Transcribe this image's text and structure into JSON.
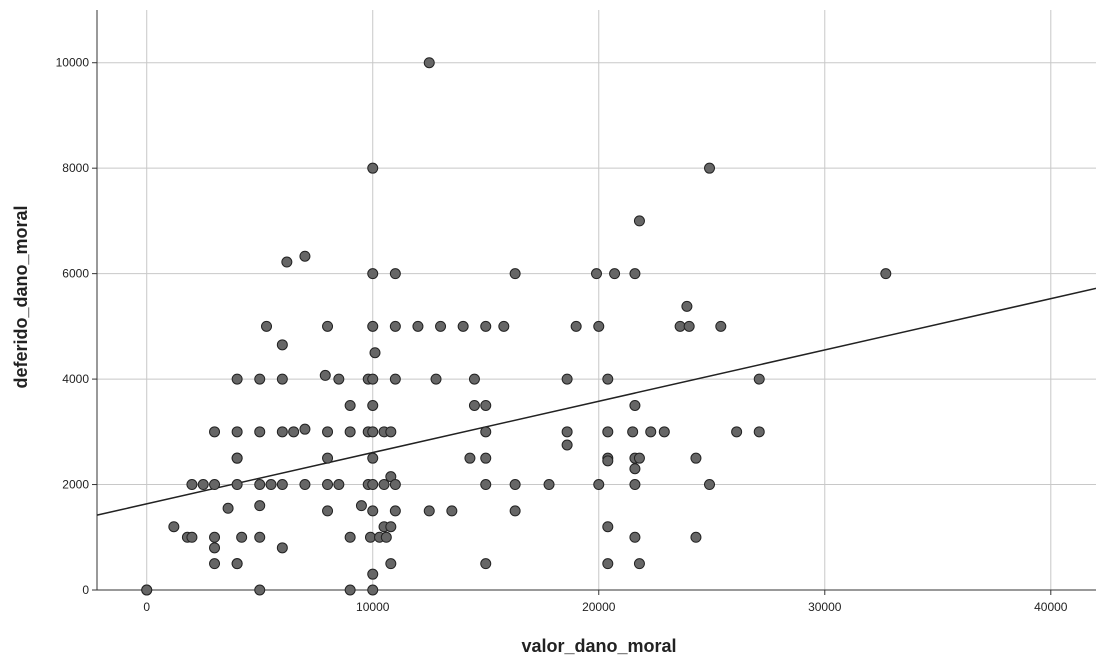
{
  "chart_data": {
    "type": "scatter",
    "xlabel": "valor_dano_moral",
    "ylabel": "deferido_dano_moral",
    "xlim": [
      -2200,
      42000
    ],
    "ylim": [
      0,
      11000
    ],
    "xticks": [
      0,
      10000,
      20000,
      30000,
      40000
    ],
    "yticks": [
      0,
      2000,
      4000,
      6000,
      8000,
      10000
    ],
    "grid": true,
    "point_color": "#666666",
    "point_edge": "#222222",
    "line_color": "#222222",
    "fit_line": {
      "x": [
        -2200,
        42000
      ],
      "y": [
        1420,
        5720
      ]
    },
    "points": [
      [
        0,
        0
      ],
      [
        0,
        0
      ],
      [
        1200,
        1200
      ],
      [
        1800,
        1000
      ],
      [
        2000,
        1000
      ],
      [
        2000,
        2000
      ],
      [
        2500,
        2000
      ],
      [
        3000,
        3000
      ],
      [
        3000,
        2000
      ],
      [
        3000,
        1000
      ],
      [
        3000,
        800
      ],
      [
        3000,
        500
      ],
      [
        3600,
        1550
      ],
      [
        4000,
        4000
      ],
      [
        4000,
        3000
      ],
      [
        4000,
        2500
      ],
      [
        4000,
        2500
      ],
      [
        4000,
        2000
      ],
      [
        4000,
        500
      ],
      [
        4000,
        500
      ],
      [
        4200,
        1000
      ],
      [
        5000,
        4000
      ],
      [
        5000,
        3000
      ],
      [
        5000,
        2000
      ],
      [
        5000,
        1600
      ],
      [
        5000,
        1000
      ],
      [
        5000,
        0
      ],
      [
        5300,
        5000
      ],
      [
        5500,
        2000
      ],
      [
        6000,
        4650
      ],
      [
        6000,
        4000
      ],
      [
        6000,
        3000
      ],
      [
        6000,
        2000
      ],
      [
        6000,
        800
      ],
      [
        6200,
        6220
      ],
      [
        6500,
        3000
      ],
      [
        7000,
        6330
      ],
      [
        7000,
        3050
      ],
      [
        7000,
        2000
      ],
      [
        7900,
        4070
      ],
      [
        8000,
        5000
      ],
      [
        8000,
        3000
      ],
      [
        8000,
        2500
      ],
      [
        8000,
        2000
      ],
      [
        8000,
        1500
      ],
      [
        8500,
        4000
      ],
      [
        8500,
        2000
      ],
      [
        9000,
        3500
      ],
      [
        9000,
        3000
      ],
      [
        9000,
        1000
      ],
      [
        9000,
        0
      ],
      [
        9500,
        1600
      ],
      [
        9800,
        4000
      ],
      [
        9800,
        3000
      ],
      [
        9800,
        2000
      ],
      [
        9900,
        1000
      ],
      [
        10000,
        8000
      ],
      [
        10000,
        6000
      ],
      [
        10000,
        5000
      ],
      [
        10000,
        4000
      ],
      [
        10000,
        3500
      ],
      [
        10000,
        3000
      ],
      [
        10000,
        2500
      ],
      [
        10000,
        2000
      ],
      [
        10000,
        1500
      ],
      [
        10000,
        300
      ],
      [
        10000,
        0
      ],
      [
        10100,
        4500
      ],
      [
        10300,
        1000
      ],
      [
        10500,
        3000
      ],
      [
        10500,
        2000
      ],
      [
        10500,
        1200
      ],
      [
        10600,
        1000
      ],
      [
        10800,
        3000
      ],
      [
        10800,
        2150
      ],
      [
        10800,
        1200
      ],
      [
        10800,
        500
      ],
      [
        11000,
        6000
      ],
      [
        11000,
        5000
      ],
      [
        11000,
        4000
      ],
      [
        11000,
        2000
      ],
      [
        11000,
        1500
      ],
      [
        12000,
        5000
      ],
      [
        12500,
        10000
      ],
      [
        12500,
        1500
      ],
      [
        12800,
        4000
      ],
      [
        13000,
        5000
      ],
      [
        13500,
        1500
      ],
      [
        14000,
        5000
      ],
      [
        14300,
        2500
      ],
      [
        14500,
        4000
      ],
      [
        14500,
        3500
      ],
      [
        15000,
        5000
      ],
      [
        15000,
        3500
      ],
      [
        15000,
        3000
      ],
      [
        15000,
        2500
      ],
      [
        15000,
        2000
      ],
      [
        15000,
        500
      ],
      [
        15800,
        5000
      ],
      [
        16300,
        6000
      ],
      [
        16300,
        2000
      ],
      [
        16300,
        1500
      ],
      [
        17800,
        2000
      ],
      [
        18600,
        4000
      ],
      [
        18600,
        3000
      ],
      [
        18600,
        2750
      ],
      [
        19000,
        5000
      ],
      [
        19900,
        6000
      ],
      [
        20000,
        5000
      ],
      [
        20000,
        2000
      ],
      [
        20400,
        4000
      ],
      [
        20400,
        3000
      ],
      [
        20400,
        2500
      ],
      [
        20400,
        2450
      ],
      [
        20400,
        1200
      ],
      [
        20400,
        500
      ],
      [
        20700,
        6000
      ],
      [
        21500,
        3000
      ],
      [
        21600,
        6000
      ],
      [
        21600,
        3500
      ],
      [
        21600,
        2500
      ],
      [
        21600,
        2300
      ],
      [
        21600,
        2000
      ],
      [
        21600,
        1000
      ],
      [
        21800,
        7000
      ],
      [
        21800,
        2500
      ],
      [
        21800,
        500
      ],
      [
        22300,
        3000
      ],
      [
        22900,
        3000
      ],
      [
        23600,
        5000
      ],
      [
        23900,
        5380
      ],
      [
        24000,
        5000
      ],
      [
        24300,
        2500
      ],
      [
        24300,
        1000
      ],
      [
        24900,
        8000
      ],
      [
        24900,
        2000
      ],
      [
        25400,
        5000
      ],
      [
        26100,
        3000
      ],
      [
        27100,
        4000
      ],
      [
        27100,
        3000
      ],
      [
        32700,
        6000
      ]
    ]
  }
}
